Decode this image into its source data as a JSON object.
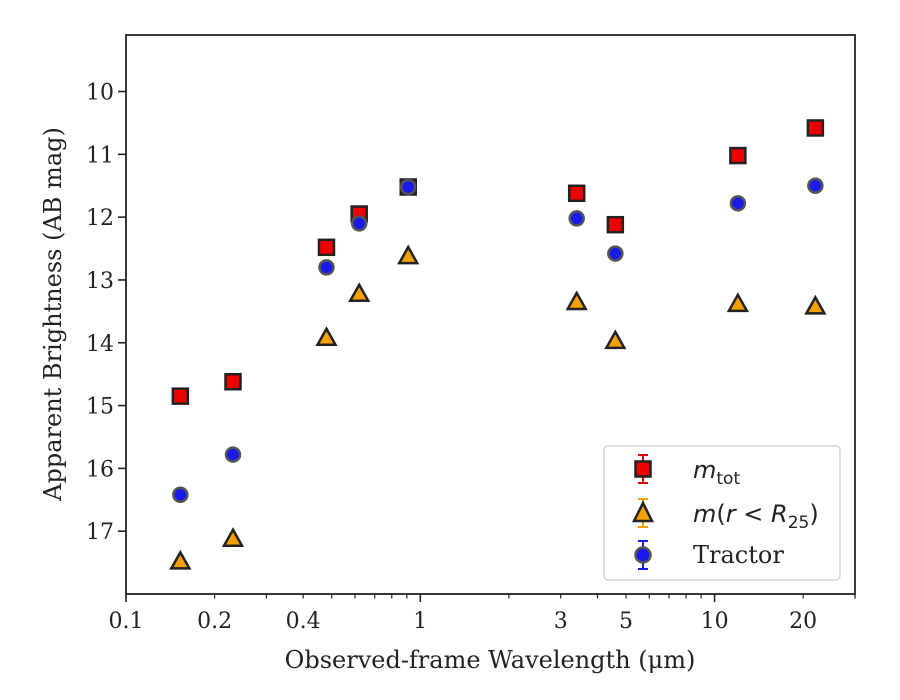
{
  "chart_data": {
    "type": "scatter",
    "xlabel": "Observed-frame Wavelength (μm)",
    "ylabel": "Apparent Brightness (AB mag)",
    "xscale": "log",
    "xlim": [
      0.1,
      30
    ],
    "ylim": [
      18.0,
      9.1
    ],
    "y_inverted": true,
    "x_tick_labels": [
      "0.1",
      "0.2",
      "0.4",
      "1",
      "3",
      "5",
      "10",
      "20"
    ],
    "y_tick_labels": [
      "10",
      "11",
      "12",
      "13",
      "14",
      "15",
      "16",
      "17"
    ],
    "legend_position": "lower-right",
    "series": [
      {
        "key": "m_tot",
        "marker": "square",
        "color": "#ee0000",
        "errorbar_color": "#dd0000",
        "x": [
          0.153,
          0.231,
          0.48,
          0.62,
          0.91,
          3.4,
          4.6,
          12.0,
          22.0
        ],
        "y": [
          14.85,
          14.62,
          12.48,
          11.95,
          11.52,
          11.62,
          12.12,
          11.02,
          10.58
        ]
      },
      {
        "key": "m_r25",
        "marker": "triangle",
        "color": "#f5a000",
        "errorbar_color": "#f5a000",
        "x": [
          0.153,
          0.231,
          0.48,
          0.62,
          0.91,
          3.4,
          4.6,
          12.0,
          22.0
        ],
        "y": [
          17.48,
          17.12,
          13.92,
          13.22,
          12.62,
          13.35,
          13.97,
          13.38,
          13.42
        ]
      },
      {
        "key": "tractor",
        "name": "Tractor",
        "marker": "circle",
        "color": "#1a1aee",
        "errorbar_color": "#1a1aee",
        "x": [
          0.153,
          0.231,
          0.48,
          0.62,
          0.91,
          3.4,
          4.6,
          12.0,
          22.0
        ],
        "y": [
          16.42,
          15.78,
          12.8,
          12.1,
          11.52,
          12.02,
          12.58,
          11.78,
          11.5
        ]
      }
    ]
  }
}
